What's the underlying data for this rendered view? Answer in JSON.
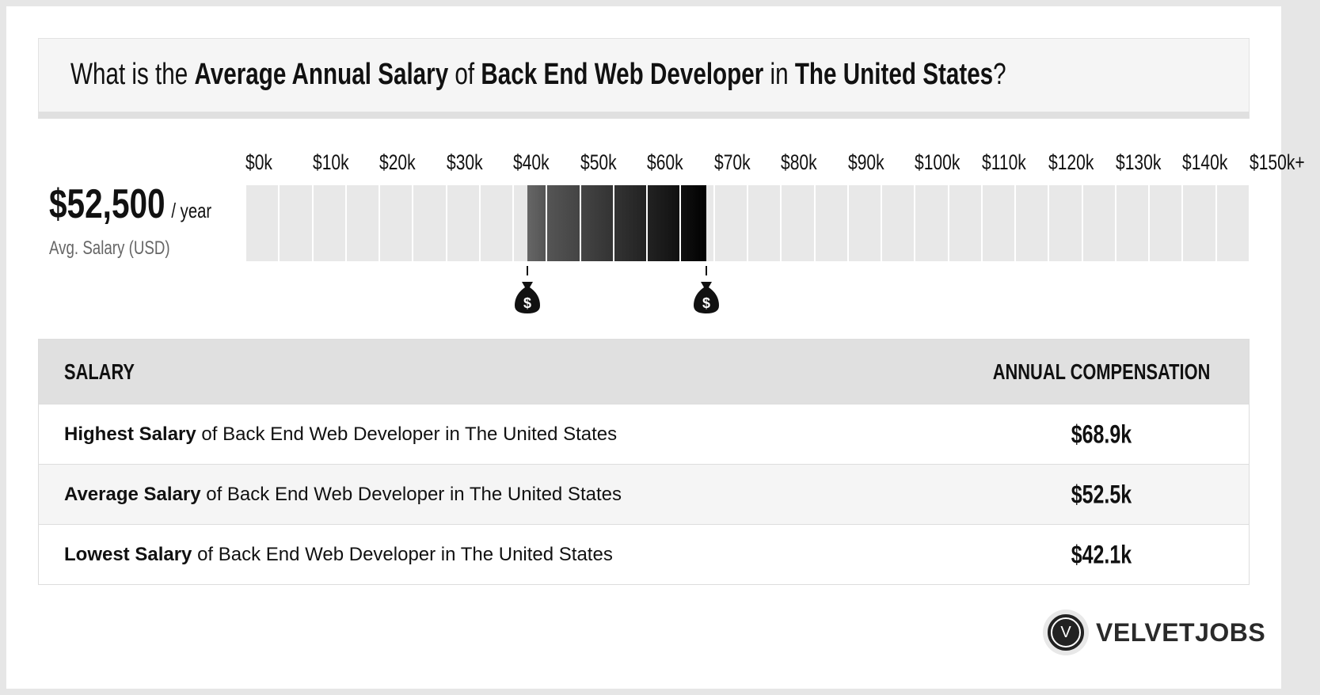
{
  "header": {
    "q1": "What is the ",
    "h1": "Average Annual Salary",
    "q2": " of ",
    "h2": "Back End Web Developer",
    "q3": " in ",
    "h3": "The United States",
    "q4": "?"
  },
  "summary": {
    "value": "$52,500",
    "unit": "/ year",
    "label": "Avg. Salary (USD)"
  },
  "chart_data": {
    "type": "range-bar",
    "tick_labels": [
      "$0k",
      "$10k",
      "$20k",
      "$30k",
      "$40k",
      "$50k",
      "$60k",
      "$70k",
      "$80k",
      "$90k",
      "$100k",
      "$110k",
      "$120k",
      "$130k",
      "$140k",
      "$150k+"
    ],
    "xlim": [
      0,
      150000
    ],
    "segment_size": 5000,
    "low": 42100,
    "high": 68900,
    "average": 52500,
    "colors": {
      "empty": "#e8e8e8",
      "range_start": "#666666",
      "range_end": "#000000"
    },
    "markers": [
      "money-bag-icon",
      "money-bag-icon"
    ]
  },
  "table": {
    "headers": [
      "SALARY",
      "ANNUAL COMPENSATION"
    ],
    "rows": [
      {
        "bold": "Highest Salary",
        "rest": " of Back End Web Developer in The United States",
        "value": "$68.9k"
      },
      {
        "bold": "Average Salary",
        "rest": " of Back End Web Developer in The United States",
        "value": "$52.5k"
      },
      {
        "bold": "Lowest Salary",
        "rest": " of Back End Web Developer in The United States",
        "value": "$42.1k"
      }
    ]
  },
  "logo": {
    "mark": "V",
    "text": "VELVETJOBS"
  }
}
